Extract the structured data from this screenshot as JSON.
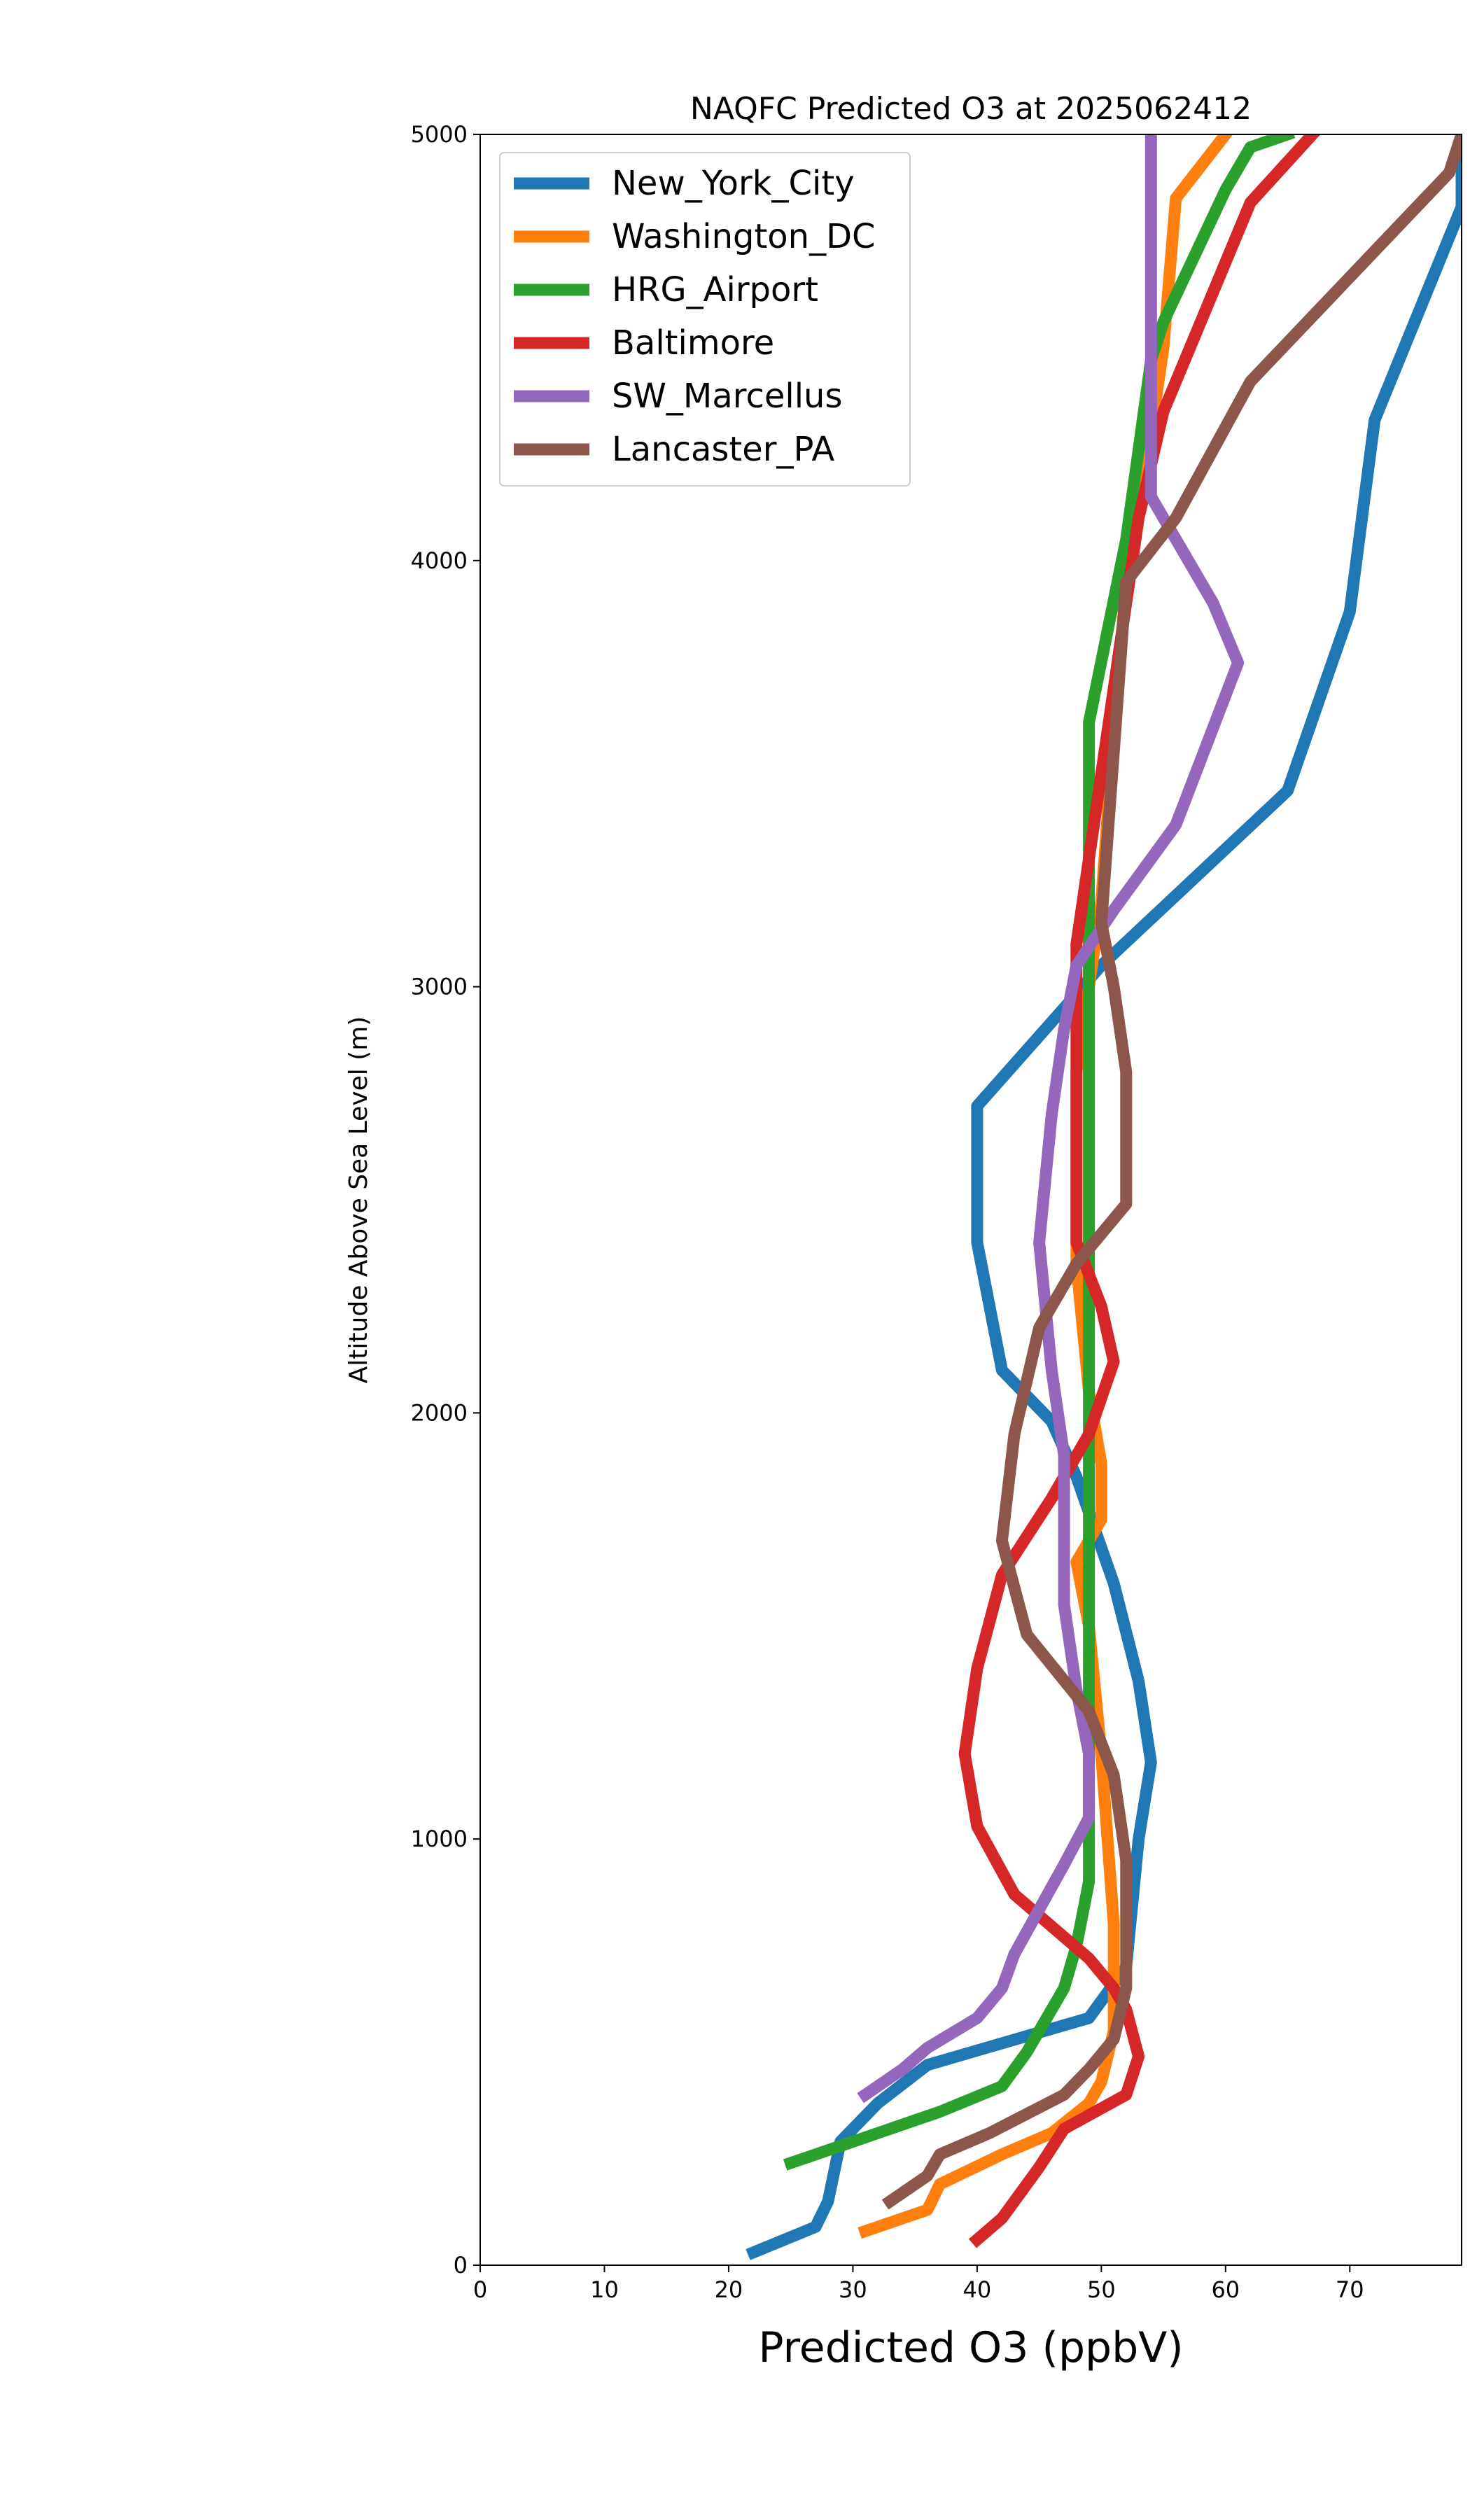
{
  "chart_data": {
    "type": "line",
    "title": "NAQFC Predicted O3 at 2025062412",
    "xlabel": "Predicted O3 (ppbV)",
    "ylabel": "Altitude Above Sea Level (m)",
    "xlim": [
      0,
      79
    ],
    "ylim": [
      0,
      5000
    ],
    "xticks": [
      "0",
      "10",
      "20",
      "30",
      "40",
      "50",
      "60",
      "70"
    ],
    "yticks": [
      "0",
      "1000",
      "2000",
      "3000",
      "4000",
      "5000"
    ],
    "grid": false,
    "legend_position": "upper-left",
    "series": [
      {
        "name": "New_York_City",
        "color": "#1f77b4",
        "points": [
          [
            22,
            30
          ],
          [
            27,
            90
          ],
          [
            28,
            150
          ],
          [
            29,
            290
          ],
          [
            32,
            380
          ],
          [
            36,
            470
          ],
          [
            49,
            580
          ],
          [
            52,
            700
          ],
          [
            53,
            1000
          ],
          [
            54,
            1180
          ],
          [
            53,
            1370
          ],
          [
            51,
            1600
          ],
          [
            48,
            1850
          ],
          [
            46,
            1980
          ],
          [
            42,
            2100
          ],
          [
            40,
            2400
          ],
          [
            40,
            2720
          ],
          [
            47,
            2950
          ],
          [
            50,
            3050
          ],
          [
            65,
            3460
          ],
          [
            70,
            3880
          ],
          [
            72,
            4330
          ],
          [
            79,
            4830
          ],
          [
            79,
            5000
          ]
        ]
      },
      {
        "name": "Washington_DC",
        "color": "#ff7f0e",
        "points": [
          [
            31,
            80
          ],
          [
            36,
            130
          ],
          [
            37,
            190
          ],
          [
            42,
            260
          ],
          [
            46,
            310
          ],
          [
            49,
            380
          ],
          [
            50,
            430
          ],
          [
            51,
            550
          ],
          [
            51,
            650
          ],
          [
            51,
            800
          ],
          [
            50,
            1200
          ],
          [
            49,
            1500
          ],
          [
            48,
            1650
          ],
          [
            50,
            1750
          ],
          [
            50,
            1880
          ],
          [
            49,
            2050
          ],
          [
            48,
            2350
          ],
          [
            48,
            2800
          ],
          [
            50,
            3200
          ],
          [
            51,
            3600
          ],
          [
            52,
            3950
          ],
          [
            54,
            4300
          ],
          [
            55,
            4500
          ],
          [
            56,
            4850
          ],
          [
            60,
            5000
          ]
        ]
      },
      {
        "name": "HRG_Airport",
        "color": "#2ca02c",
        "points": [
          [
            25,
            240
          ],
          [
            31,
            300
          ],
          [
            37,
            360
          ],
          [
            42,
            420
          ],
          [
            44,
            500
          ],
          [
            45,
            550
          ],
          [
            47,
            650
          ],
          [
            48,
            750
          ],
          [
            49,
            900
          ],
          [
            49,
            1150
          ],
          [
            49,
            1500
          ],
          [
            49,
            1800
          ],
          [
            49,
            2000
          ],
          [
            49,
            2200
          ],
          [
            49,
            2500
          ],
          [
            49,
            2800
          ],
          [
            49,
            3200
          ],
          [
            49,
            3620
          ],
          [
            52,
            4050
          ],
          [
            54,
            4470
          ],
          [
            55,
            4560
          ],
          [
            60,
            4870
          ],
          [
            62,
            4970
          ],
          [
            65,
            5000
          ]
        ]
      },
      {
        "name": "Baltimore",
        "color": "#d62728",
        "points": [
          [
            40,
            60
          ],
          [
            42,
            110
          ],
          [
            45,
            230
          ],
          [
            47,
            320
          ],
          [
            52,
            400
          ],
          [
            53,
            490
          ],
          [
            52,
            600
          ],
          [
            51,
            650
          ],
          [
            49,
            720
          ],
          [
            43,
            870
          ],
          [
            40,
            1030
          ],
          [
            39,
            1200
          ],
          [
            40,
            1400
          ],
          [
            42,
            1620
          ],
          [
            46,
            1800
          ],
          [
            49,
            1950
          ],
          [
            51,
            2120
          ],
          [
            50,
            2250
          ],
          [
            48,
            2400
          ],
          [
            48,
            2800
          ],
          [
            48,
            3100
          ],
          [
            49,
            3300
          ],
          [
            50,
            3500
          ],
          [
            51,
            3700
          ],
          [
            52,
            3900
          ],
          [
            53,
            4100
          ],
          [
            55,
            4350
          ],
          [
            62,
            4840
          ],
          [
            67,
            5000
          ]
        ]
      },
      {
        "name": "SW_Marcellus",
        "color": "#9467bd",
        "points": [
          [
            31,
            400
          ],
          [
            34,
            460
          ],
          [
            36,
            510
          ],
          [
            40,
            580
          ],
          [
            42,
            650
          ],
          [
            43,
            730
          ],
          [
            47,
            940
          ],
          [
            49,
            1050
          ],
          [
            49,
            1200
          ],
          [
            48,
            1350
          ],
          [
            47,
            1550
          ],
          [
            47,
            1700
          ],
          [
            47,
            1900
          ],
          [
            46,
            2100
          ],
          [
            45,
            2400
          ],
          [
            46,
            2700
          ],
          [
            47,
            2900
          ],
          [
            48,
            3050
          ],
          [
            51,
            3180
          ],
          [
            56,
            3380
          ],
          [
            61,
            3760
          ],
          [
            59,
            3900
          ],
          [
            54,
            4150
          ],
          [
            54,
            4600
          ],
          [
            54,
            5000
          ]
        ]
      },
      {
        "name": "Lancaster_PA",
        "color": "#8c564b",
        "points": [
          [
            33,
            150
          ],
          [
            36,
            210
          ],
          [
            37,
            260
          ],
          [
            41,
            310
          ],
          [
            47,
            400
          ],
          [
            49,
            460
          ],
          [
            51,
            530
          ],
          [
            52,
            650
          ],
          [
            52,
            820
          ],
          [
            52,
            950
          ],
          [
            51,
            1150
          ],
          [
            49,
            1300
          ],
          [
            44,
            1480
          ],
          [
            42,
            1700
          ],
          [
            43,
            1950
          ],
          [
            45,
            2200
          ],
          [
            48,
            2350
          ],
          [
            52,
            2490
          ],
          [
            52,
            2800
          ],
          [
            51,
            3000
          ],
          [
            50,
            3150
          ],
          [
            51,
            3550
          ],
          [
            52,
            3950
          ],
          [
            56,
            4100
          ],
          [
            62,
            4420
          ],
          [
            78,
            4910
          ],
          [
            79,
            5000
          ]
        ]
      }
    ]
  }
}
